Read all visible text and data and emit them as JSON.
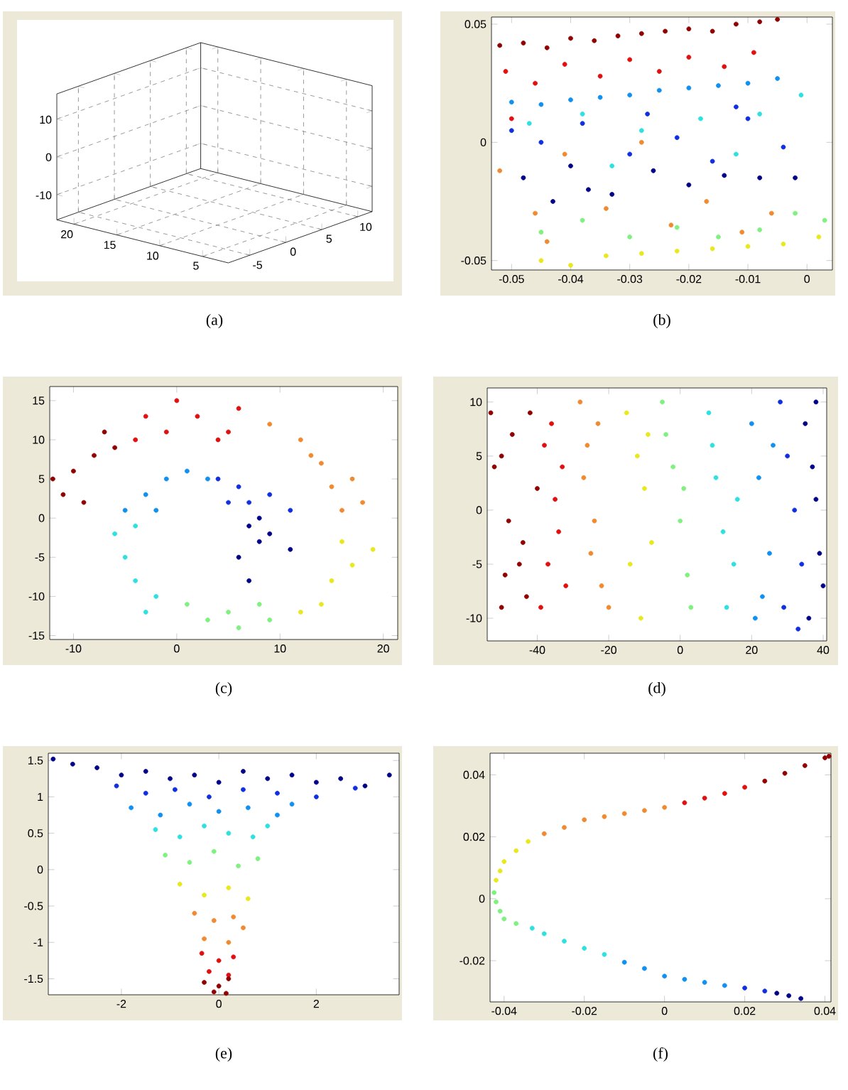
{
  "chart_data": [
    {
      "type": "other",
      "title": "(a)",
      "annotations": [
        "10",
        "0",
        "-10",
        "20",
        "15",
        "10",
        "5",
        "-5",
        "0",
        "5",
        "10"
      ]
    },
    {
      "type": "scatter",
      "title": "(b)",
      "xlim": [
        -0.0534,
        0.0043
      ],
      "ylim": [
        -0.054,
        0.053
      ],
      "xticks": [
        -0.05,
        -0.04,
        -0.03,
        -0.02,
        -0.01,
        0
      ],
      "yticks": [
        -0.05,
        0,
        0.05
      ],
      "series": [
        {
          "color": "#900000",
          "x": [
            -0.052,
            -0.048,
            -0.044,
            -0.04,
            -0.036,
            -0.032,
            -0.028,
            -0.024,
            -0.02,
            -0.016,
            -0.012,
            -0.008,
            -0.005
          ],
          "values": [
            0.041,
            0.042,
            0.04,
            0.044,
            0.043,
            0.045,
            0.046,
            0.047,
            0.048,
            0.047,
            0.05,
            0.051,
            0.052
          ]
        },
        {
          "color": "#e01010",
          "x": [
            -0.051,
            -0.046,
            -0.041,
            -0.035,
            -0.03,
            -0.025,
            -0.02,
            -0.014,
            -0.009,
            -0.05
          ],
          "values": [
            0.03,
            0.025,
            0.033,
            0.028,
            0.035,
            0.03,
            0.036,
            0.032,
            0.038,
            0.01
          ]
        },
        {
          "color": "#1090f0",
          "x": [
            -0.05,
            -0.045,
            -0.04,
            -0.035,
            -0.03,
            -0.025,
            -0.02,
            -0.015,
            -0.01,
            -0.005
          ],
          "values": [
            0.017,
            0.016,
            0.018,
            0.019,
            0.02,
            0.022,
            0.023,
            0.024,
            0.025,
            0.027
          ]
        },
        {
          "color": "#30e0e0",
          "x": [
            -0.047,
            -0.038,
            -0.028,
            -0.018,
            -0.008,
            -0.001,
            -0.033,
            -0.012
          ],
          "values": [
            0.008,
            0.012,
            0.005,
            0.01,
            0.012,
            0.02,
            -0.01,
            -0.005
          ]
        },
        {
          "color": "#1030e0",
          "x": [
            -0.05,
            -0.045,
            -0.038,
            -0.03,
            -0.022,
            -0.016,
            -0.01,
            -0.004,
            -0.027,
            -0.012
          ],
          "values": [
            0.005,
            0,
            0.008,
            -0.005,
            0.002,
            -0.008,
            0.01,
            -0.002,
            0.012,
            0.015
          ]
        },
        {
          "color": "#000088",
          "x": [
            -0.048,
            -0.043,
            -0.037,
            -0.033,
            -0.026,
            -0.02,
            -0.014,
            -0.008,
            -0.002,
            -0.04
          ],
          "values": [
            -0.015,
            -0.025,
            -0.02,
            -0.022,
            -0.012,
            -0.018,
            -0.014,
            -0.015,
            -0.015,
            -0.01
          ]
        },
        {
          "color": "#f08a30",
          "x": [
            -0.052,
            -0.046,
            -0.041,
            -0.034,
            -0.028,
            -0.023,
            -0.017,
            -0.011,
            -0.006,
            -0.044
          ],
          "values": [
            -0.012,
            -0.03,
            -0.005,
            -0.028,
            0,
            -0.035,
            -0.025,
            -0.038,
            -0.03,
            -0.042
          ]
        },
        {
          "color": "#80f080",
          "x": [
            -0.045,
            -0.038,
            -0.03,
            -0.022,
            -0.015,
            -0.008,
            -0.002,
            0.003
          ],
          "values": [
            -0.038,
            -0.033,
            -0.04,
            -0.036,
            -0.04,
            -0.037,
            -0.03,
            -0.033
          ]
        },
        {
          "color": "#e8e820",
          "x": [
            -0.045,
            -0.04,
            -0.034,
            -0.028,
            -0.022,
            -0.016,
            -0.01,
            -0.004,
            0.002
          ],
          "values": [
            -0.05,
            -0.052,
            -0.048,
            -0.047,
            -0.046,
            -0.045,
            -0.044,
            -0.043,
            -0.04
          ]
        }
      ]
    },
    {
      "type": "scatter",
      "title": "(c)",
      "xlim": [
        -12.3,
        21.4
      ],
      "ylim": [
        -15.5,
        16.8
      ],
      "xticks": [
        -10,
        0,
        10,
        20
      ],
      "yticks": [
        -15,
        -10,
        -5,
        0,
        5,
        10,
        15
      ],
      "series": [
        {
          "color": "#900000",
          "x": [
            -11,
            -10,
            -8,
            -6,
            -9,
            -7,
            -12
          ],
          "values": [
            3,
            6,
            8,
            9,
            2,
            11,
            5
          ]
        },
        {
          "color": "#e01010",
          "x": [
            -4,
            -1,
            2,
            4,
            0,
            -3,
            6,
            5
          ],
          "values": [
            10,
            11,
            13,
            10,
            15,
            13,
            14,
            11
          ]
        },
        {
          "color": "#f08a30",
          "x": [
            9,
            12,
            14,
            15,
            13,
            17,
            16,
            18
          ],
          "values": [
            12,
            10,
            7,
            4,
            8,
            5,
            1,
            2
          ]
        },
        {
          "color": "#e8e820",
          "x": [
            16,
            17,
            15,
            14,
            12,
            19
          ],
          "values": [
            -3,
            -6,
            -8,
            -11,
            -12,
            -4
          ]
        },
        {
          "color": "#80f080",
          "x": [
            9,
            6,
            3,
            5,
            1,
            8
          ],
          "values": [
            -13,
            -14,
            -13,
            -12,
            -11,
            -11
          ]
        },
        {
          "color": "#30e0e0",
          "x": [
            -2,
            -4,
            -5,
            -6,
            -3,
            -4
          ],
          "values": [
            -10,
            -8,
            -5,
            -2,
            -12,
            -1
          ]
        },
        {
          "color": "#1090f0",
          "x": [
            -5,
            -3,
            -1,
            1,
            3,
            -2
          ],
          "values": [
            1,
            3,
            5,
            6,
            5,
            1
          ]
        },
        {
          "color": "#1030e0",
          "x": [
            4,
            6,
            7,
            9,
            11,
            5
          ],
          "values": [
            5,
            4,
            2,
            3,
            1,
            2
          ]
        },
        {
          "color": "#000088",
          "x": [
            7,
            8,
            6,
            7,
            9,
            11,
            8
          ],
          "values": [
            -1,
            -3,
            -5,
            -8,
            -2,
            -4,
            0
          ]
        }
      ]
    },
    {
      "type": "scatter",
      "title": "(d)",
      "xlim": [
        -54,
        41
      ],
      "ylim": [
        -12.1,
        11.3
      ],
      "xticks": [
        -40,
        -20,
        0,
        20,
        40
      ],
      "yticks": [
        -10,
        -5,
        0,
        5,
        10
      ],
      "series": [
        {
          "color": "#900000",
          "x": [
            -53,
            -50,
            -48,
            -45,
            -43,
            -40,
            -50,
            -47,
            -44,
            -52,
            -49,
            -42
          ],
          "values": [
            9,
            5,
            -1,
            -5,
            -8,
            2,
            -9,
            7,
            -3,
            4,
            -6,
            9
          ]
        },
        {
          "color": "#e01010",
          "x": [
            -38,
            -36,
            -34,
            -32,
            -37,
            -35,
            -33,
            -39
          ],
          "values": [
            6,
            8,
            -2,
            -7,
            -5,
            1,
            4,
            -9
          ]
        },
        {
          "color": "#f08a30",
          "x": [
            -28,
            -26,
            -24,
            -22,
            -27,
            -25,
            -23,
            -20
          ],
          "values": [
            10,
            6,
            -1,
            -7,
            3,
            -4,
            8,
            -9
          ]
        },
        {
          "color": "#e8e820",
          "x": [
            -15,
            -12,
            -10,
            -8,
            -14,
            -11,
            -9
          ],
          "values": [
            9,
            5,
            2,
            -3,
            -5,
            -10,
            7
          ]
        },
        {
          "color": "#80f080",
          "x": [
            -5,
            -2,
            0,
            2,
            -4,
            1,
            3
          ],
          "values": [
            10,
            4,
            -1,
            -6,
            7,
            2,
            -9
          ]
        },
        {
          "color": "#30e0e0",
          "x": [
            8,
            10,
            12,
            15,
            9,
            13,
            16
          ],
          "values": [
            9,
            3,
            -2,
            -5,
            6,
            -9,
            1
          ]
        },
        {
          "color": "#1090f0",
          "x": [
            20,
            22,
            25,
            23,
            21,
            26
          ],
          "values": [
            8,
            3,
            -4,
            -8,
            -10,
            6
          ]
        },
        {
          "color": "#1030e0",
          "x": [
            28,
            30,
            32,
            34,
            29,
            33
          ],
          "values": [
            10,
            5,
            0,
            -5,
            -9,
            -11
          ]
        },
        {
          "color": "#000088",
          "x": [
            35,
            37,
            38,
            39,
            40,
            36,
            38
          ],
          "values": [
            8,
            4,
            1,
            -4,
            -7,
            -10,
            10
          ]
        }
      ]
    },
    {
      "type": "scatter",
      "title": "(e)",
      "xlim": [
        -3.5,
        3.7
      ],
      "ylim": [
        -1.72,
        1.6
      ],
      "xticks": [
        -2,
        0,
        2
      ],
      "yticks": [
        -1.5,
        -1,
        -0.5,
        0,
        0.5,
        1,
        1.5
      ],
      "series": [
        {
          "color": "#000088",
          "x": [
            -3.4,
            -3.0,
            -2.5,
            -2.0,
            -1.5,
            -1.0,
            -0.5,
            0,
            0.5,
            1.0,
            1.5,
            2.0,
            2.5,
            3.0,
            3.5
          ],
          "values": [
            1.52,
            1.45,
            1.4,
            1.3,
            1.35,
            1.25,
            1.3,
            1.2,
            1.35,
            1.25,
            1.3,
            1.2,
            1.25,
            1.15,
            1.3
          ]
        },
        {
          "color": "#1030e0",
          "x": [
            -2.1,
            -1.5,
            -0.9,
            -0.2,
            0.5,
            1.2,
            2.0,
            2.8
          ],
          "values": [
            1.15,
            1.05,
            1.1,
            1.0,
            1.1,
            1.05,
            1.0,
            1.12
          ]
        },
        {
          "color": "#1090f0",
          "x": [
            -1.8,
            -1.2,
            -0.6,
            0,
            0.6,
            1.2,
            1.5
          ],
          "values": [
            0.85,
            0.75,
            0.9,
            0.8,
            0.85,
            0.75,
            0.9
          ]
        },
        {
          "color": "#30e0e0",
          "x": [
            -1.3,
            -0.8,
            -0.3,
            0.2,
            0.7,
            1.0
          ],
          "values": [
            0.55,
            0.45,
            0.6,
            0.5,
            0.45,
            0.6
          ]
        },
        {
          "color": "#80f080",
          "x": [
            -1.1,
            -0.6,
            -0.1,
            0.4,
            0.8
          ],
          "values": [
            0.2,
            0.1,
            0.25,
            0.05,
            0.15
          ]
        },
        {
          "color": "#e8e820",
          "x": [
            -0.8,
            -0.3,
            0.2,
            0.6
          ],
          "values": [
            -0.2,
            -0.35,
            -0.25,
            -0.4
          ]
        },
        {
          "color": "#f08a30",
          "x": [
            -0.5,
            -0.1,
            0.3,
            0.5,
            -0.3,
            0.2
          ],
          "values": [
            -0.6,
            -0.7,
            -0.65,
            -0.8,
            -0.95,
            -1.0
          ]
        },
        {
          "color": "#e01010",
          "x": [
            -0.35,
            0,
            0.3,
            -0.2,
            0.2
          ],
          "values": [
            -1.15,
            -1.25,
            -1.2,
            -1.4,
            -1.45
          ]
        },
        {
          "color": "#900000",
          "x": [
            -0.3,
            0,
            0.2,
            -0.1,
            0.15
          ],
          "values": [
            -1.55,
            -1.6,
            -1.5,
            -1.68,
            -1.7
          ]
        }
      ]
    },
    {
      "type": "scatter",
      "title": "(f)",
      "xlim": [
        -0.0435,
        0.0415
      ],
      "ylim": [
        -0.0333,
        0.047
      ],
      "xticks": [
        -0.04,
        -0.02,
        0,
        0.02,
        0.04
      ],
      "yticks": [
        -0.02,
        0,
        0.02,
        0.04
      ],
      "series": [
        {
          "color": "#900000",
          "x": [
            0.025,
            0.03,
            0.035,
            0.04,
            0.041
          ],
          "values": [
            0.038,
            0.0405,
            0.043,
            0.0455,
            0.046
          ]
        },
        {
          "color": "#e01010",
          "x": [
            0.005,
            0.01,
            0.015,
            0.02
          ],
          "values": [
            0.031,
            0.0325,
            0.034,
            0.036
          ]
        },
        {
          "color": "#f08a30",
          "x": [
            -0.03,
            -0.025,
            -0.02,
            -0.015,
            -0.01,
            -0.005,
            0
          ],
          "values": [
            0.021,
            0.023,
            0.0255,
            0.0265,
            0.0275,
            0.0285,
            0.0295
          ]
        },
        {
          "color": "#e8e820",
          "x": [
            -0.042,
            -0.041,
            -0.04,
            -0.037,
            -0.034
          ],
          "values": [
            0.006,
            0.009,
            0.012,
            0.0155,
            0.0185
          ]
        },
        {
          "color": "#80f080",
          "x": [
            -0.0425,
            -0.042,
            -0.041,
            -0.04,
            -0.037
          ],
          "values": [
            0.002,
            -0.001,
            -0.004,
            -0.0065,
            -0.008
          ]
        },
        {
          "color": "#30e0e0",
          "x": [
            -0.033,
            -0.03,
            -0.025,
            -0.02,
            -0.015
          ],
          "values": [
            -0.0095,
            -0.0113,
            -0.0137,
            -0.016,
            -0.018
          ]
        },
        {
          "color": "#1090f0",
          "x": [
            -0.01,
            -0.005,
            0,
            0.005,
            0.01,
            0.015
          ],
          "values": [
            -0.0205,
            -0.0225,
            -0.025,
            -0.026,
            -0.027,
            -0.028
          ]
        },
        {
          "color": "#1030e0",
          "x": [
            0.02,
            0.025
          ],
          "values": [
            -0.0288,
            -0.0298
          ]
        },
        {
          "color": "#000088",
          "x": [
            0.028,
            0.031,
            0.034
          ],
          "values": [
            -0.0305,
            -0.0313,
            -0.0322
          ]
        }
      ]
    }
  ]
}
